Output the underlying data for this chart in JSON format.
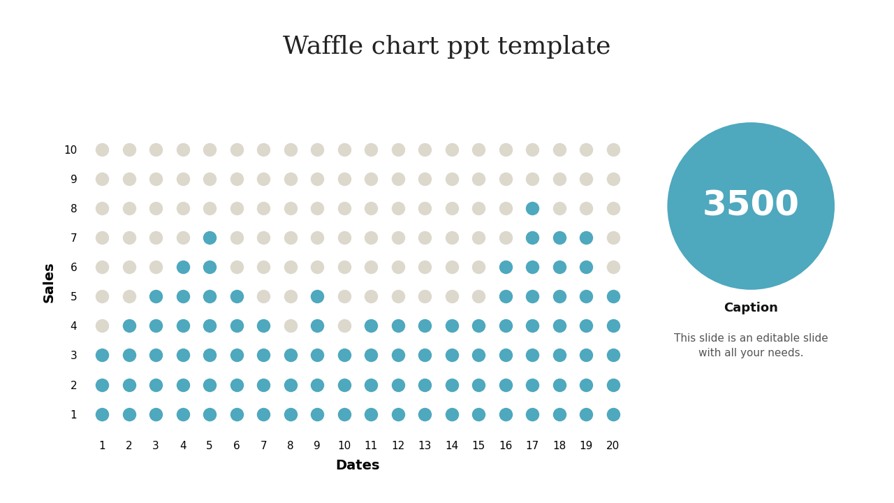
{
  "title": "Waffle chart ppt template",
  "title_fontsize": 26,
  "x_label": "Dates",
  "y_label": "Sales",
  "x_ticks": [
    1,
    2,
    3,
    4,
    5,
    6,
    7,
    8,
    9,
    10,
    11,
    12,
    13,
    14,
    15,
    16,
    17,
    18,
    19,
    20
  ],
  "y_ticks": [
    1,
    2,
    3,
    4,
    5,
    6,
    7,
    8,
    9,
    10
  ],
  "blue_color": "#4ea8be",
  "beige_color": "#ddd8cc",
  "circle_color": "#4ea8be",
  "circle_number": "3500",
  "circle_number_fontsize": 36,
  "caption_title": "Caption",
  "caption_text": "This slide is an editable slide\nwith all your needs.",
  "caption_fontsize": 12,
  "background_color": "#ffffff",
  "blue_cells": [
    [
      1,
      1
    ],
    [
      2,
      1
    ],
    [
      3,
      1
    ],
    [
      4,
      1
    ],
    [
      5,
      1
    ],
    [
      6,
      1
    ],
    [
      7,
      1
    ],
    [
      8,
      1
    ],
    [
      9,
      1
    ],
    [
      10,
      1
    ],
    [
      11,
      1
    ],
    [
      12,
      1
    ],
    [
      13,
      1
    ],
    [
      14,
      1
    ],
    [
      15,
      1
    ],
    [
      16,
      1
    ],
    [
      17,
      1
    ],
    [
      18,
      1
    ],
    [
      19,
      1
    ],
    [
      20,
      1
    ],
    [
      1,
      2
    ],
    [
      2,
      2
    ],
    [
      3,
      2
    ],
    [
      4,
      2
    ],
    [
      5,
      2
    ],
    [
      6,
      2
    ],
    [
      7,
      2
    ],
    [
      8,
      2
    ],
    [
      9,
      2
    ],
    [
      10,
      2
    ],
    [
      11,
      2
    ],
    [
      12,
      2
    ],
    [
      13,
      2
    ],
    [
      14,
      2
    ],
    [
      15,
      2
    ],
    [
      16,
      2
    ],
    [
      17,
      2
    ],
    [
      18,
      2
    ],
    [
      19,
      2
    ],
    [
      20,
      2
    ],
    [
      1,
      3
    ],
    [
      2,
      3
    ],
    [
      3,
      3
    ],
    [
      4,
      3
    ],
    [
      5,
      3
    ],
    [
      6,
      3
    ],
    [
      7,
      3
    ],
    [
      8,
      3
    ],
    [
      9,
      3
    ],
    [
      10,
      3
    ],
    [
      11,
      3
    ],
    [
      12,
      3
    ],
    [
      13,
      3
    ],
    [
      14,
      3
    ],
    [
      15,
      3
    ],
    [
      16,
      3
    ],
    [
      17,
      3
    ],
    [
      18,
      3
    ],
    [
      19,
      3
    ],
    [
      20,
      3
    ],
    [
      2,
      4
    ],
    [
      3,
      4
    ],
    [
      4,
      4
    ],
    [
      5,
      4
    ],
    [
      6,
      4
    ],
    [
      7,
      4
    ],
    [
      9,
      4
    ],
    [
      11,
      4
    ],
    [
      12,
      4
    ],
    [
      13,
      4
    ],
    [
      14,
      4
    ],
    [
      15,
      4
    ],
    [
      16,
      4
    ],
    [
      17,
      4
    ],
    [
      18,
      4
    ],
    [
      19,
      4
    ],
    [
      20,
      4
    ],
    [
      3,
      5
    ],
    [
      4,
      5
    ],
    [
      5,
      5
    ],
    [
      6,
      5
    ],
    [
      9,
      5
    ],
    [
      16,
      5
    ],
    [
      17,
      5
    ],
    [
      18,
      5
    ],
    [
      19,
      5
    ],
    [
      20,
      5
    ],
    [
      4,
      6
    ],
    [
      5,
      6
    ],
    [
      16,
      6
    ],
    [
      17,
      6
    ],
    [
      18,
      6
    ],
    [
      19,
      6
    ],
    [
      5,
      7
    ],
    [
      17,
      7
    ],
    [
      18,
      7
    ],
    [
      19,
      7
    ],
    [
      17,
      8
    ]
  ]
}
